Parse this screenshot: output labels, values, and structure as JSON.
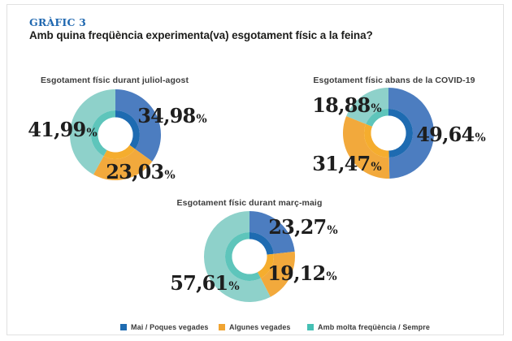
{
  "header": {
    "kicker": "GRÀFIC 3",
    "question": "Amb quina freqüència experimenta(va) esgotament físic a la feina?"
  },
  "palette": {
    "series": [
      {
        "name": "Mai / Poques vegades",
        "outer": "#4c7dc0",
        "inner": "#1e6bb1",
        "legend": "#1e6bb1"
      },
      {
        "name": "Algunes vegades",
        "outer": "#f2a93c",
        "inner": "#f5ad2e",
        "legend": "#f0a432"
      },
      {
        "name": "Amb molta freqüència / Sempre",
        "outer": "#8ed1ca",
        "inner": "#5ec5bb",
        "legend": "#45c0b4"
      }
    ]
  },
  "legend": {
    "position": "bottom",
    "items": [
      {
        "label": "Mai / Poques vegades"
      },
      {
        "label": "Algunes vegades"
      },
      {
        "label": "Amb molta freqüència / Sempre"
      }
    ]
  },
  "chart_data": [
    {
      "type": "pie",
      "subtype": "donut",
      "title": "Esgotament físic durant juliol-agost",
      "categories": [
        "Mai / Poques vegades",
        "Algunes vegades",
        "Amb molta freqüència / Sempre"
      ],
      "values": [
        34.98,
        23.03,
        41.99
      ],
      "labels": [
        "34,98",
        "23,03",
        "41,99"
      ],
      "unit": "%",
      "start_angle_deg": 0,
      "direction": "clockwise"
    },
    {
      "type": "pie",
      "subtype": "donut",
      "title": "Esgotament físic abans de la COVID-19",
      "categories": [
        "Mai / Poques vegades",
        "Algunes vegades",
        "Amb molta freqüència / Sempre"
      ],
      "values": [
        49.64,
        31.47,
        18.88
      ],
      "labels": [
        "49,64",
        "31,47",
        "18,88"
      ],
      "unit": "%",
      "start_angle_deg": 0,
      "direction": "clockwise"
    },
    {
      "type": "pie",
      "subtype": "donut",
      "title": "Esgotament físic durant març-maig",
      "categories": [
        "Mai / Poques vegades",
        "Algunes vegades",
        "Amb molta freqüència / Sempre"
      ],
      "values": [
        23.27,
        19.12,
        57.61
      ],
      "labels": [
        "23,27",
        "19,12",
        "57,61"
      ],
      "unit": "%",
      "start_angle_deg": 0,
      "direction": "clockwise"
    }
  ]
}
